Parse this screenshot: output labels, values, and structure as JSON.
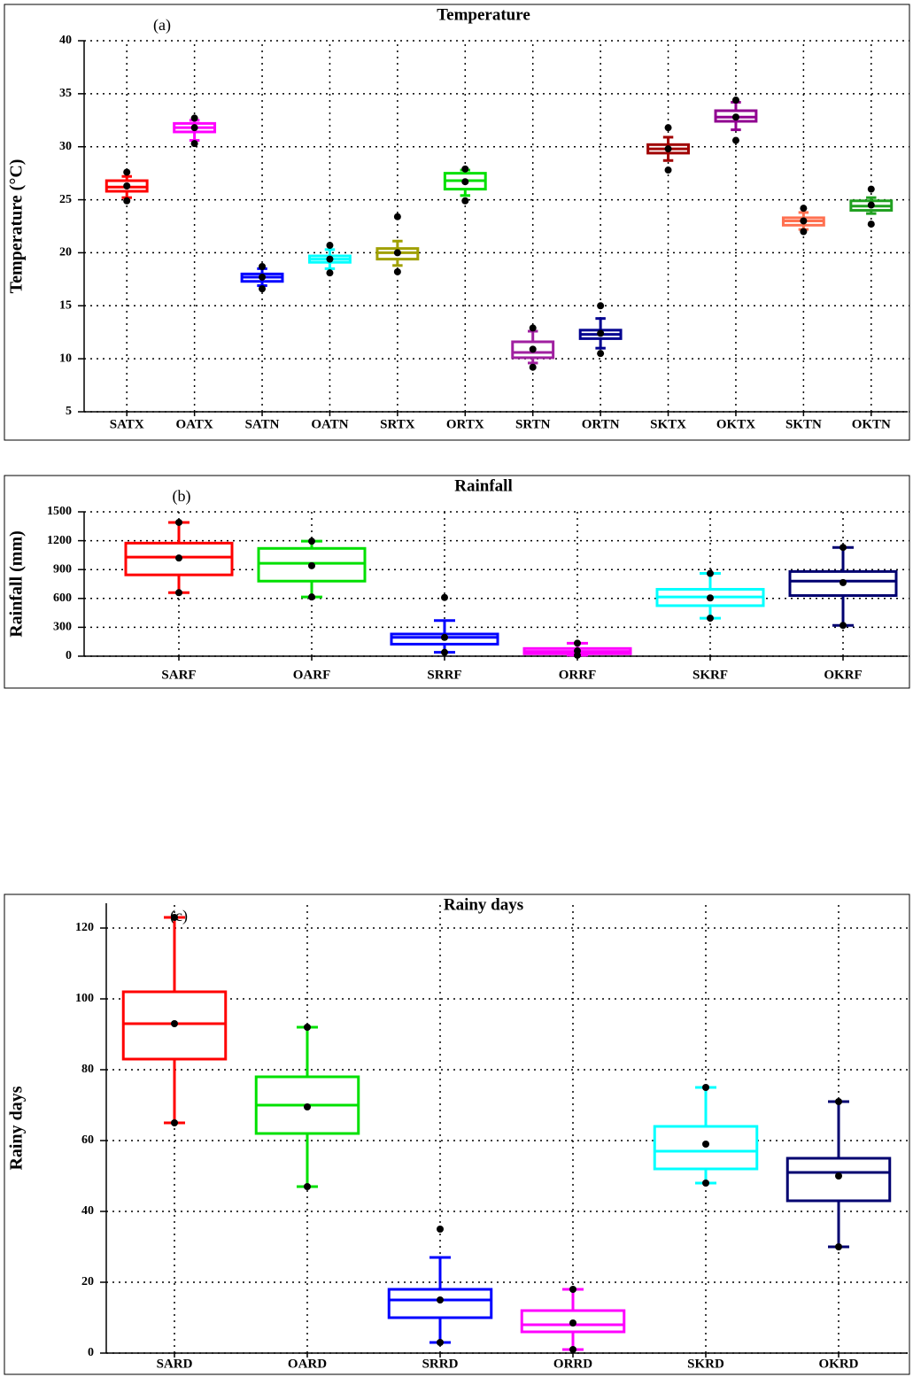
{
  "chart_data": [
    {
      "type": "box",
      "title": "Temperature",
      "annotation": "(a)",
      "y_label": "Temperature (°C)",
      "categories": [
        "SATX",
        "OATX",
        "SATN",
        "OATN",
        "SRTX",
        "ORTX",
        "SRTN",
        "ORTN",
        "SKTX",
        "OKTX",
        "SKTN",
        "OKTN"
      ],
      "colors": [
        "#ff0000",
        "#ff00ff",
        "#0000ff",
        "#00ffff",
        "#a0a000",
        "#00e000",
        "#a020a0",
        "#000090",
        "#a00000",
        "#900090",
        "#ff7050",
        "#20a020"
      ],
      "whisker_low": [
        25.2,
        30.6,
        16.9,
        18.5,
        18.8,
        25.4,
        9.6,
        11.0,
        28.7,
        31.6,
        22.2,
        23.7
      ],
      "q1": [
        25.8,
        31.4,
        17.3,
        19.1,
        19.4,
        26.0,
        10.1,
        11.9,
        29.4,
        32.4,
        22.6,
        24.0
      ],
      "median": [
        26.2,
        31.8,
        17.7,
        19.4,
        20.0,
        26.8,
        10.6,
        12.3,
        29.8,
        32.8,
        23.0,
        24.4
      ],
      "q3": [
        26.8,
        32.2,
        18.0,
        19.7,
        20.4,
        27.5,
        11.6,
        12.7,
        30.2,
        33.4,
        23.3,
        24.9
      ],
      "whisker_high": [
        27.2,
        32.5,
        18.5,
        20.3,
        21.1,
        27.8,
        12.6,
        13.8,
        30.9,
        34.2,
        23.8,
        25.2
      ],
      "mean": [
        26.3,
        31.8,
        17.7,
        19.4,
        20.0,
        26.7,
        10.9,
        12.4,
        29.8,
        32.8,
        23.0,
        24.5
      ],
      "min": [
        24.9,
        30.3,
        16.6,
        18.1,
        18.2,
        24.9,
        9.2,
        10.5,
        27.8,
        30.6,
        22.0,
        22.7
      ],
      "max": [
        27.6,
        32.7,
        18.7,
        20.7,
        23.4,
        27.9,
        12.9,
        15.0,
        31.8,
        34.4,
        24.2,
        26.0
      ],
      "ylim": [
        5,
        40
      ],
      "yticks": [
        5,
        10,
        15,
        20,
        25,
        30,
        35,
        40
      ],
      "grid": true
    },
    {
      "type": "box",
      "title": "Rainfall",
      "annotation": "(b)",
      "y_label": "Rainfall (mm)",
      "categories": [
        "SARF",
        "OARF",
        "SRRF",
        "ORRF",
        "SKRF",
        "OKRF"
      ],
      "colors": [
        "#ff0000",
        "#00e000",
        "#0000ff",
        "#ff00ff",
        "#00ffff",
        "#000070"
      ],
      "whisker_low": [
        660,
        615,
        40,
        10,
        395,
        320
      ],
      "q1": [
        845,
        780,
        125,
        25,
        525,
        630
      ],
      "median": [
        1030,
        965,
        195,
        50,
        615,
        780
      ],
      "q3": [
        1175,
        1120,
        230,
        80,
        695,
        880
      ],
      "whisker_high": [
        1390,
        1195,
        370,
        135,
        860,
        1130
      ],
      "mean": [
        1020,
        940,
        195,
        55,
        605,
        765
      ],
      "min": [
        660,
        615,
        40,
        10,
        395,
        320
      ],
      "max": [
        1390,
        1195,
        610,
        135,
        860,
        1130
      ],
      "ylim": [
        0,
        1500
      ],
      "yticks": [
        0,
        300,
        600,
        900,
        1200,
        1500
      ],
      "grid": true
    },
    {
      "type": "box",
      "title": "Rainy days",
      "annotation": "(c)",
      "y_label": "Rainy days",
      "categories": [
        "SARD",
        "OARD",
        "SRRD",
        "ORRD",
        "SKRD",
        "OKRD"
      ],
      "colors": [
        "#ff0000",
        "#00e000",
        "#0000ff",
        "#ff00ff",
        "#00ffff",
        "#000070"
      ],
      "whisker_low": [
        65,
        47,
        3,
        1,
        48,
        30
      ],
      "q1": [
        83,
        62,
        10,
        6,
        52,
        43
      ],
      "median": [
        93,
        70,
        15,
        8,
        57,
        51
      ],
      "q3": [
        102,
        78,
        18,
        12,
        64,
        55
      ],
      "whisker_high": [
        123,
        92,
        27,
        18,
        75,
        71
      ],
      "mean": [
        93,
        69.5,
        15,
        8.5,
        59,
        50
      ],
      "min": [
        65,
        47,
        3,
        1,
        48,
        30
      ],
      "max": [
        123,
        92,
        35,
        18,
        75,
        71
      ],
      "ylim": [
        0,
        127
      ],
      "yticks": [
        0,
        20,
        40,
        60,
        80,
        100,
        120
      ],
      "grid": true
    }
  ]
}
